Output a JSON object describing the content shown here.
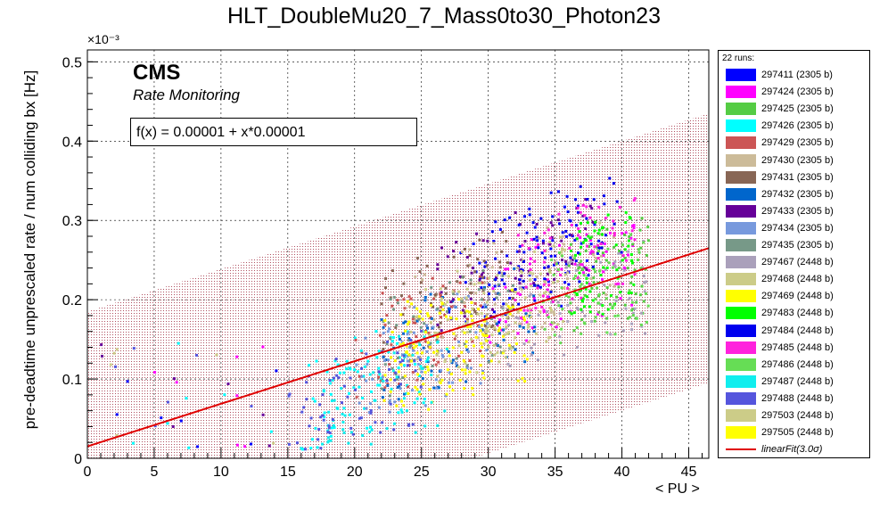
{
  "chart_data": {
    "type": "scatter",
    "title": "HLT_DoubleMu20_7_Mass0to30_Photon23",
    "xlabel": "< PU >",
    "ylabel": "pre-deadtime unprescaled rate / num colliding bx [Hz]",
    "y_exponent": "×10⁻³",
    "xlim": [
      0,
      46.5
    ],
    "ylim": [
      0,
      0.000515
    ],
    "x_ticks": [
      0,
      5,
      10,
      15,
      20,
      25,
      30,
      35,
      40,
      45
    ],
    "y_ticks": [
      0,
      0.0001,
      0.0002,
      0.0003,
      0.0004,
      0.0005
    ],
    "y_tick_labels": [
      "0",
      "0.1",
      "0.2",
      "0.3",
      "0.4",
      "0.5"
    ],
    "grid": true,
    "legend_position": "right",
    "legend_header": "22 runs:",
    "fit": {
      "label": "linearFit(3.0σ)",
      "equation": "f(x) = 0.00001 + x*0.00001",
      "x": [
        0,
        46.5
      ],
      "y": [
        1.5e-05,
        0.000265
      ],
      "band_halfwidth": 0.00017,
      "color": "#e00000"
    },
    "annotations": {
      "cms": "CMS",
      "rate_monitoring": "Rate Monitoring"
    },
    "series": [
      {
        "name": "297411 (2305 b)",
        "color": "#0000ff",
        "x_range": [
          27,
          38
        ],
        "offset": 5e-05
      },
      {
        "name": "297424 (2305 b)",
        "color": "#ff00ff",
        "x_range": [
          30,
          41
        ],
        "offset": 2e-05
      },
      {
        "name": "297425 (2305 b)",
        "color": "#55cc44",
        "x_range": [
          36,
          42
        ],
        "offset": 0.0
      },
      {
        "name": "297426 (2305 b)",
        "color": "#00ffff",
        "x_range": [
          16,
          26
        ],
        "offset": -3e-05
      },
      {
        "name": "297429 (2305 b)",
        "color": "#cc5555",
        "x_range": [
          20,
          30
        ],
        "offset": 1e-05
      },
      {
        "name": "297430 (2305 b)",
        "color": "#ccbb99",
        "x_range": [
          24,
          40
        ],
        "offset": 3e-05
      },
      {
        "name": "297431 (2305 b)",
        "color": "#886655",
        "x_range": [
          22,
          32
        ],
        "offset": 4e-05
      },
      {
        "name": "297432 (2305 b)",
        "color": "#0066cc",
        "x_range": [
          22,
          34
        ],
        "offset": -1e-05
      },
      {
        "name": "297433 (2305 b)",
        "color": "#660099",
        "x_range": [
          26,
          38
        ],
        "offset": 6e-05
      },
      {
        "name": "297434 (2305 b)",
        "color": "#7799dd",
        "x_range": [
          20,
          30
        ],
        "offset": -2e-05
      },
      {
        "name": "297435 (2305 b)",
        "color": "#779988",
        "x_range": [
          22,
          32
        ],
        "offset": 0.0
      },
      {
        "name": "297467 (2448 b)",
        "color": "#aaa0bb",
        "x_range": [
          30,
          42
        ],
        "offset": -2e-05
      },
      {
        "name": "297468 (2448 b)",
        "color": "#cccc88",
        "x_range": [
          24,
          36
        ],
        "offset": 1e-05
      },
      {
        "name": "297469 (2448 b)",
        "color": "#ffff00",
        "x_range": [
          23,
          33
        ],
        "offset": -3e-05
      },
      {
        "name": "297483 (2448 b)",
        "color": "#00ff00",
        "x_range": [
          36,
          41
        ],
        "offset": 2e-05
      },
      {
        "name": "297484 (2448 b)",
        "color": "#0000ee",
        "x_range": [
          30,
          40
        ],
        "offset": 7e-05
      },
      {
        "name": "297485 (2448 b)",
        "color": "#ff22dd",
        "x_range": [
          32,
          41
        ],
        "offset": 4e-05
      },
      {
        "name": "297486 (2448 b)",
        "color": "#66dd55",
        "x_range": [
          34,
          42
        ],
        "offset": -1e-05
      },
      {
        "name": "297487 (2448 b)",
        "color": "#11eeee",
        "x_range": [
          17,
          27
        ],
        "offset": -5e-05
      },
      {
        "name": "297488 (2448 b)",
        "color": "#5555dd",
        "x_range": [
          15,
          25
        ],
        "offset": -4e-05
      },
      {
        "name": "297503 (2448 b)",
        "color": "#cccc88",
        "x_range": [
          26,
          36
        ],
        "offset": 0.0
      },
      {
        "name": "297505 (2448 b)",
        "color": "#ffff00",
        "x_range": [
          22,
          30
        ],
        "offset": -1e-05
      }
    ]
  }
}
